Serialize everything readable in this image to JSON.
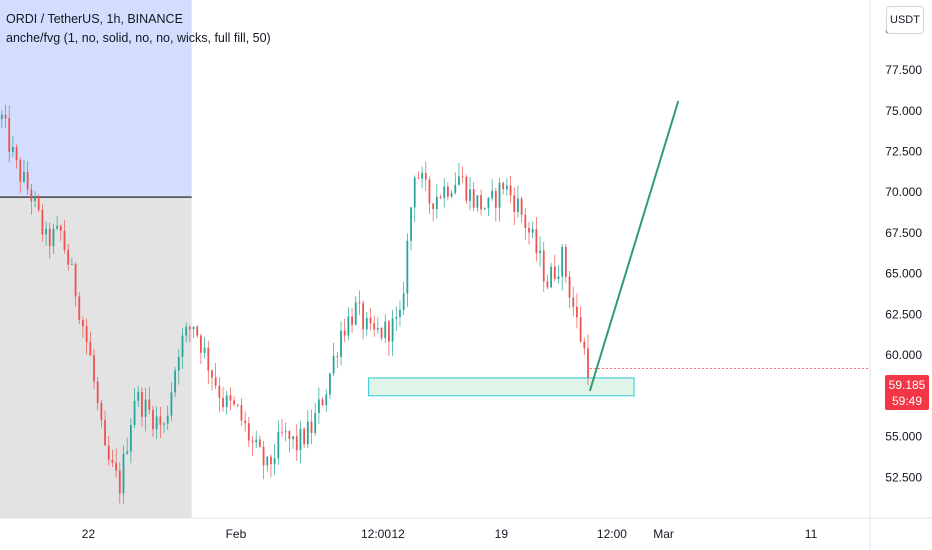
{
  "header": {
    "title": "ORDI / TetherUS, 1h, BINANCE",
    "indicator": "anche/fvg (1, no, solid, no, no, wicks, full fill, 50)"
  },
  "currency_label": "USDT",
  "last_price": {
    "value": "59.185",
    "countdown": "59:49"
  },
  "colors": {
    "up": "#26a69a",
    "down": "#ef5350",
    "blue_zone": "#d3deff",
    "grey_zone": "#e3e3e3",
    "fvg_box": "#e0f4ea",
    "fvg_border": "#2ec7d6",
    "trend_line": "#2e9e6a",
    "price_badge": "#f23645"
  },
  "chart_data": {
    "type": "candlestick",
    "y_axis": {
      "ticks": [
        "80.000",
        "77.500",
        "75.000",
        "72.500",
        "70.000",
        "67.500",
        "65.000",
        "62.500",
        "60.000",
        "57.500",
        "55.000",
        "52.500"
      ],
      "range": [
        50.0,
        81.8
      ]
    },
    "x_axis": {
      "ticks": [
        "22",
        "Feb",
        "12:00",
        "12",
        "19",
        "12:00",
        "Mar",
        "11"
      ],
      "range": [
        "Jan 16",
        "Mar 15"
      ]
    },
    "path_points": [
      {
        "t": "Jan 16",
        "p": 74.5
      },
      {
        "t": "Jan 17",
        "p": 71.5
      },
      {
        "t": "Jan 18",
        "p": 69.8
      },
      {
        "t": "Jan 19",
        "p": 67.0
      },
      {
        "t": "Jan 20",
        "p": 67.5
      },
      {
        "t": "Jan 21",
        "p": 64.0
      },
      {
        "t": "Jan 22",
        "p": 59.8
      },
      {
        "t": "Jan 23",
        "p": 53.8
      },
      {
        "t": "Jan 24",
        "p": 52.0
      },
      {
        "t": "Jan 25",
        "p": 57.5
      },
      {
        "t": "Jan 26",
        "p": 56.5
      },
      {
        "t": "Jan 27",
        "p": 55.5
      },
      {
        "t": "Jan 28",
        "p": 60.5
      },
      {
        "t": "Jan 29",
        "p": 62.0
      },
      {
        "t": "Jan 30",
        "p": 59.5
      },
      {
        "t": "Jan 31",
        "p": 57.2
      },
      {
        "t": "Feb 1",
        "p": 56.5
      },
      {
        "t": "Feb 2",
        "p": 54.5
      },
      {
        "t": "Feb 3",
        "p": 53.0
      },
      {
        "t": "Feb 4",
        "p": 55.0
      },
      {
        "t": "Feb 5",
        "p": 54.5
      },
      {
        "t": "Feb 6",
        "p": 55.5
      },
      {
        "t": "Feb 7",
        "p": 58.0
      },
      {
        "t": "Feb 8",
        "p": 61.5
      },
      {
        "t": "Feb 9",
        "p": 62.8
      },
      {
        "t": "Feb 10",
        "p": 61.2
      },
      {
        "t": "Feb 11",
        "p": 61.5
      },
      {
        "t": "Feb 12",
        "p": 62.0
      },
      {
        "t": "Feb 13",
        "p": 71.5
      },
      {
        "t": "Feb 14",
        "p": 69.5
      },
      {
        "t": "Feb 15",
        "p": 70.2
      },
      {
        "t": "Feb 16",
        "p": 71.0
      },
      {
        "t": "Feb 17",
        "p": 69.5
      },
      {
        "t": "Feb 18",
        "p": 69.0
      },
      {
        "t": "Feb 19",
        "p": 70.5
      },
      {
        "t": "Feb 20",
        "p": 69.2
      },
      {
        "t": "Feb 21",
        "p": 67.0
      },
      {
        "t": "Feb 22",
        "p": 64.5
      },
      {
        "t": "Feb 23",
        "p": 66.0
      },
      {
        "t": "Feb 24",
        "p": 62.0
      },
      {
        "t": "Feb 25",
        "p": 58.5
      }
    ],
    "fvg_zone": {
      "x_start": "Feb 10",
      "x_end": "Feb 28",
      "price_low": 57.5,
      "price_high": 58.6
    },
    "trend_line": [
      {
        "t": "Feb 25",
        "p": 57.8
      },
      {
        "t": "Mar 2",
        "p": 75.6
      }
    ],
    "session_zone": {
      "x_end": "Jan 29",
      "boundary_price": 69.7
    },
    "current_price": 59.185
  }
}
